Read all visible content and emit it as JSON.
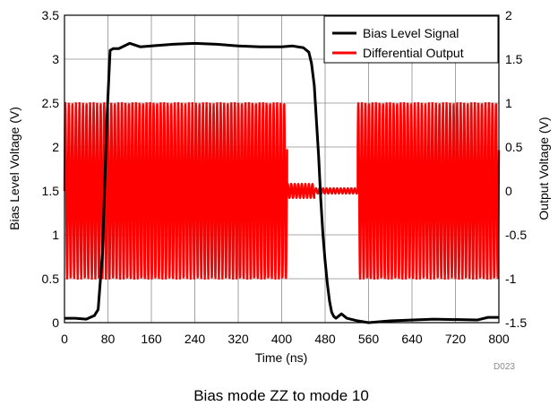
{
  "caption": "Bias mode ZZ to mode 10",
  "figure_id": "D023",
  "chart_data": {
    "type": "line",
    "title": "",
    "xlabel": "Time (ns)",
    "ylabel": "Bias Level Voltage (V)",
    "y2label": "Output Voltage (V)",
    "xlim": [
      0,
      800
    ],
    "ylim": [
      0,
      3.5
    ],
    "y2lim": [
      -1.5,
      2
    ],
    "xticks": [
      0,
      80,
      160,
      240,
      320,
      400,
      480,
      560,
      640,
      720,
      800
    ],
    "yticks": [
      0,
      0.5,
      1,
      1.5,
      2,
      2.5,
      3,
      3.5
    ],
    "y2ticks": [
      -1.5,
      -1,
      -0.5,
      0,
      0.5,
      1,
      1.5,
      2
    ],
    "grid": true,
    "legend": "top-right",
    "series": [
      {
        "name": "Bias Level Signal",
        "color": "#000000",
        "axis": "left",
        "x": [
          0,
          20,
          40,
          55,
          62,
          70,
          78,
          84,
          90,
          100,
          120,
          140,
          160,
          200,
          240,
          280,
          320,
          360,
          400,
          420,
          440,
          450,
          455,
          460,
          464,
          468,
          472,
          476,
          480,
          484,
          488,
          492,
          496,
          500,
          510,
          520,
          540,
          560,
          600,
          680,
          760,
          780,
          800
        ],
        "y": [
          0.05,
          0.05,
          0.04,
          0.08,
          0.15,
          0.8,
          2.3,
          3.1,
          3.12,
          3.12,
          3.18,
          3.14,
          3.15,
          3.17,
          3.18,
          3.17,
          3.15,
          3.14,
          3.14,
          3.15,
          3.13,
          3.08,
          2.95,
          2.7,
          2.3,
          1.9,
          1.4,
          1.0,
          0.7,
          0.45,
          0.25,
          0.12,
          0.07,
          0.05,
          0.1,
          0.05,
          0.02,
          0.0,
          0.02,
          0.04,
          0.03,
          0.06,
          0.06
        ]
      },
      {
        "name": "Differential Output",
        "color": "#ff0000",
        "axis": "right",
        "segments": [
          {
            "x_start": 0,
            "x_end": 410,
            "amplitude": 1.0,
            "period_ns": 6.5
          },
          {
            "x_start": 410,
            "x_end": 460,
            "amplitude": 0.08,
            "period_ns": 6.5
          },
          {
            "x_start": 460,
            "x_end": 540,
            "amplitude": 0.03,
            "period_ns": 6.5
          },
          {
            "x_start": 540,
            "x_end": 800,
            "amplitude": 1.0,
            "period_ns": 6.5
          }
        ]
      }
    ]
  }
}
